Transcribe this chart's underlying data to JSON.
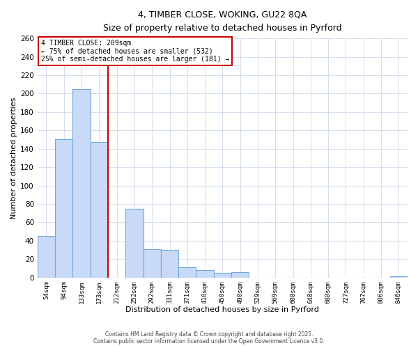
{
  "title": "4, TIMBER CLOSE, WOKING, GU22 8QA",
  "subtitle": "Size of property relative to detached houses in Pyrford",
  "xlabel": "Distribution of detached houses by size in Pyrford",
  "ylabel": "Number of detached properties",
  "categories": [
    "54sqm",
    "94sqm",
    "133sqm",
    "173sqm",
    "212sqm",
    "252sqm",
    "292sqm",
    "331sqm",
    "371sqm",
    "410sqm",
    "450sqm",
    "490sqm",
    "529sqm",
    "569sqm",
    "608sqm",
    "648sqm",
    "688sqm",
    "727sqm",
    "767sqm",
    "806sqm",
    "846sqm"
  ],
  "values": [
    45,
    150,
    205,
    147,
    0,
    75,
    31,
    30,
    11,
    8,
    5,
    6,
    0,
    0,
    0,
    0,
    0,
    0,
    0,
    0,
    1
  ],
  "bar_color": "#c9daf8",
  "bar_edge_color": "#6fa8dc",
  "vline_index": 4,
  "vline_color": "#cc0000",
  "annotation_text": "4 TIMBER CLOSE: 209sqm\n← 75% of detached houses are smaller (532)\n25% of semi-detached houses are larger (181) →",
  "annotation_box_color": "#ffffff",
  "annotation_box_edge": "#cc0000",
  "footer1": "Contains HM Land Registry data © Crown copyright and database right 2025.",
  "footer2": "Contains public sector information licensed under the Open Government Licence v3.0.",
  "ylim": [
    0,
    260
  ],
  "yticks": [
    0,
    20,
    40,
    60,
    80,
    100,
    120,
    140,
    160,
    180,
    200,
    220,
    240,
    260
  ],
  "background_color": "#ffffff",
  "grid_color": "#cdd8ea"
}
